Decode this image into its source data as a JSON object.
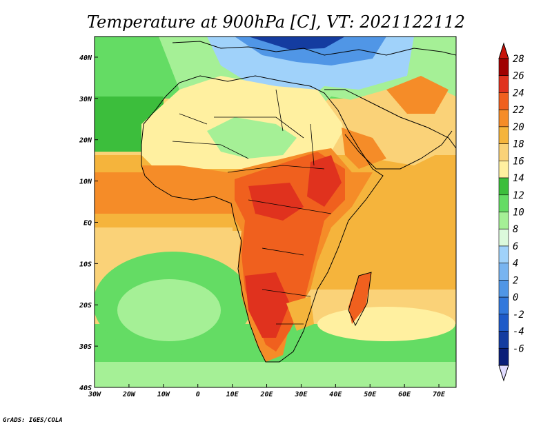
{
  "title": "Temperature at 900hPa [C], VT: 2021122112",
  "credit": "GrADS: IGES/COLA",
  "map": {
    "lon_range": [
      -30,
      75
    ],
    "lat_range": [
      -40,
      45
    ],
    "x_ticks": [
      {
        "lon": -30,
        "label": "30W"
      },
      {
        "lon": -20,
        "label": "20W"
      },
      {
        "lon": -10,
        "label": "10W"
      },
      {
        "lon": 0,
        "label": "0"
      },
      {
        "lon": 10,
        "label": "10E"
      },
      {
        "lon": 20,
        "label": "20E"
      },
      {
        "lon": 30,
        "label": "30E"
      },
      {
        "lon": 40,
        "label": "40E"
      },
      {
        "lon": 50,
        "label": "50E"
      },
      {
        "lon": 60,
        "label": "60E"
      },
      {
        "lon": 70,
        "label": "70E"
      }
    ],
    "y_ticks": [
      {
        "lat": 40,
        "label": "40N"
      },
      {
        "lat": 30,
        "label": "30N"
      },
      {
        "lat": 20,
        "label": "20N"
      },
      {
        "lat": 10,
        "label": "10N"
      },
      {
        "lat": 0,
        "label": "EQ"
      },
      {
        "lat": -10,
        "label": "10S"
      },
      {
        "lat": -20,
        "label": "20S"
      },
      {
        "lat": -30,
        "label": "30S"
      },
      {
        "lat": -40,
        "label": "40S"
      }
    ]
  },
  "colorbar": {
    "levels": [
      {
        "label": "28",
        "color": "#a00000"
      },
      {
        "label": "26",
        "color": "#e0321e"
      },
      {
        "label": "24",
        "color": "#f0601e"
      },
      {
        "label": "22",
        "color": "#f58c28"
      },
      {
        "label": "20",
        "color": "#f5b43c"
      },
      {
        "label": "18",
        "color": "#fad278"
      },
      {
        "label": "16",
        "color": "#fff0a0"
      },
      {
        "label": "14",
        "color": "#3cbe3c"
      },
      {
        "label": "12",
        "color": "#64dc64"
      },
      {
        "label": "10",
        "color": "#a5f096"
      },
      {
        "label": "8",
        "color": "#dcfadc"
      },
      {
        "label": "6",
        "color": "#a0d2fa"
      },
      {
        "label": "4",
        "color": "#78b4f0"
      },
      {
        "label": "2",
        "color": "#5096e6"
      },
      {
        "label": "0",
        "color": "#3278dc"
      },
      {
        "label": "-2",
        "color": "#1e5ac8"
      },
      {
        "label": "-4",
        "color": "#143ca0"
      },
      {
        "label": "-6",
        "color": "#0a1e78"
      }
    ],
    "top_color": "#c8140a",
    "bottom_color": "#e1dcff"
  }
}
